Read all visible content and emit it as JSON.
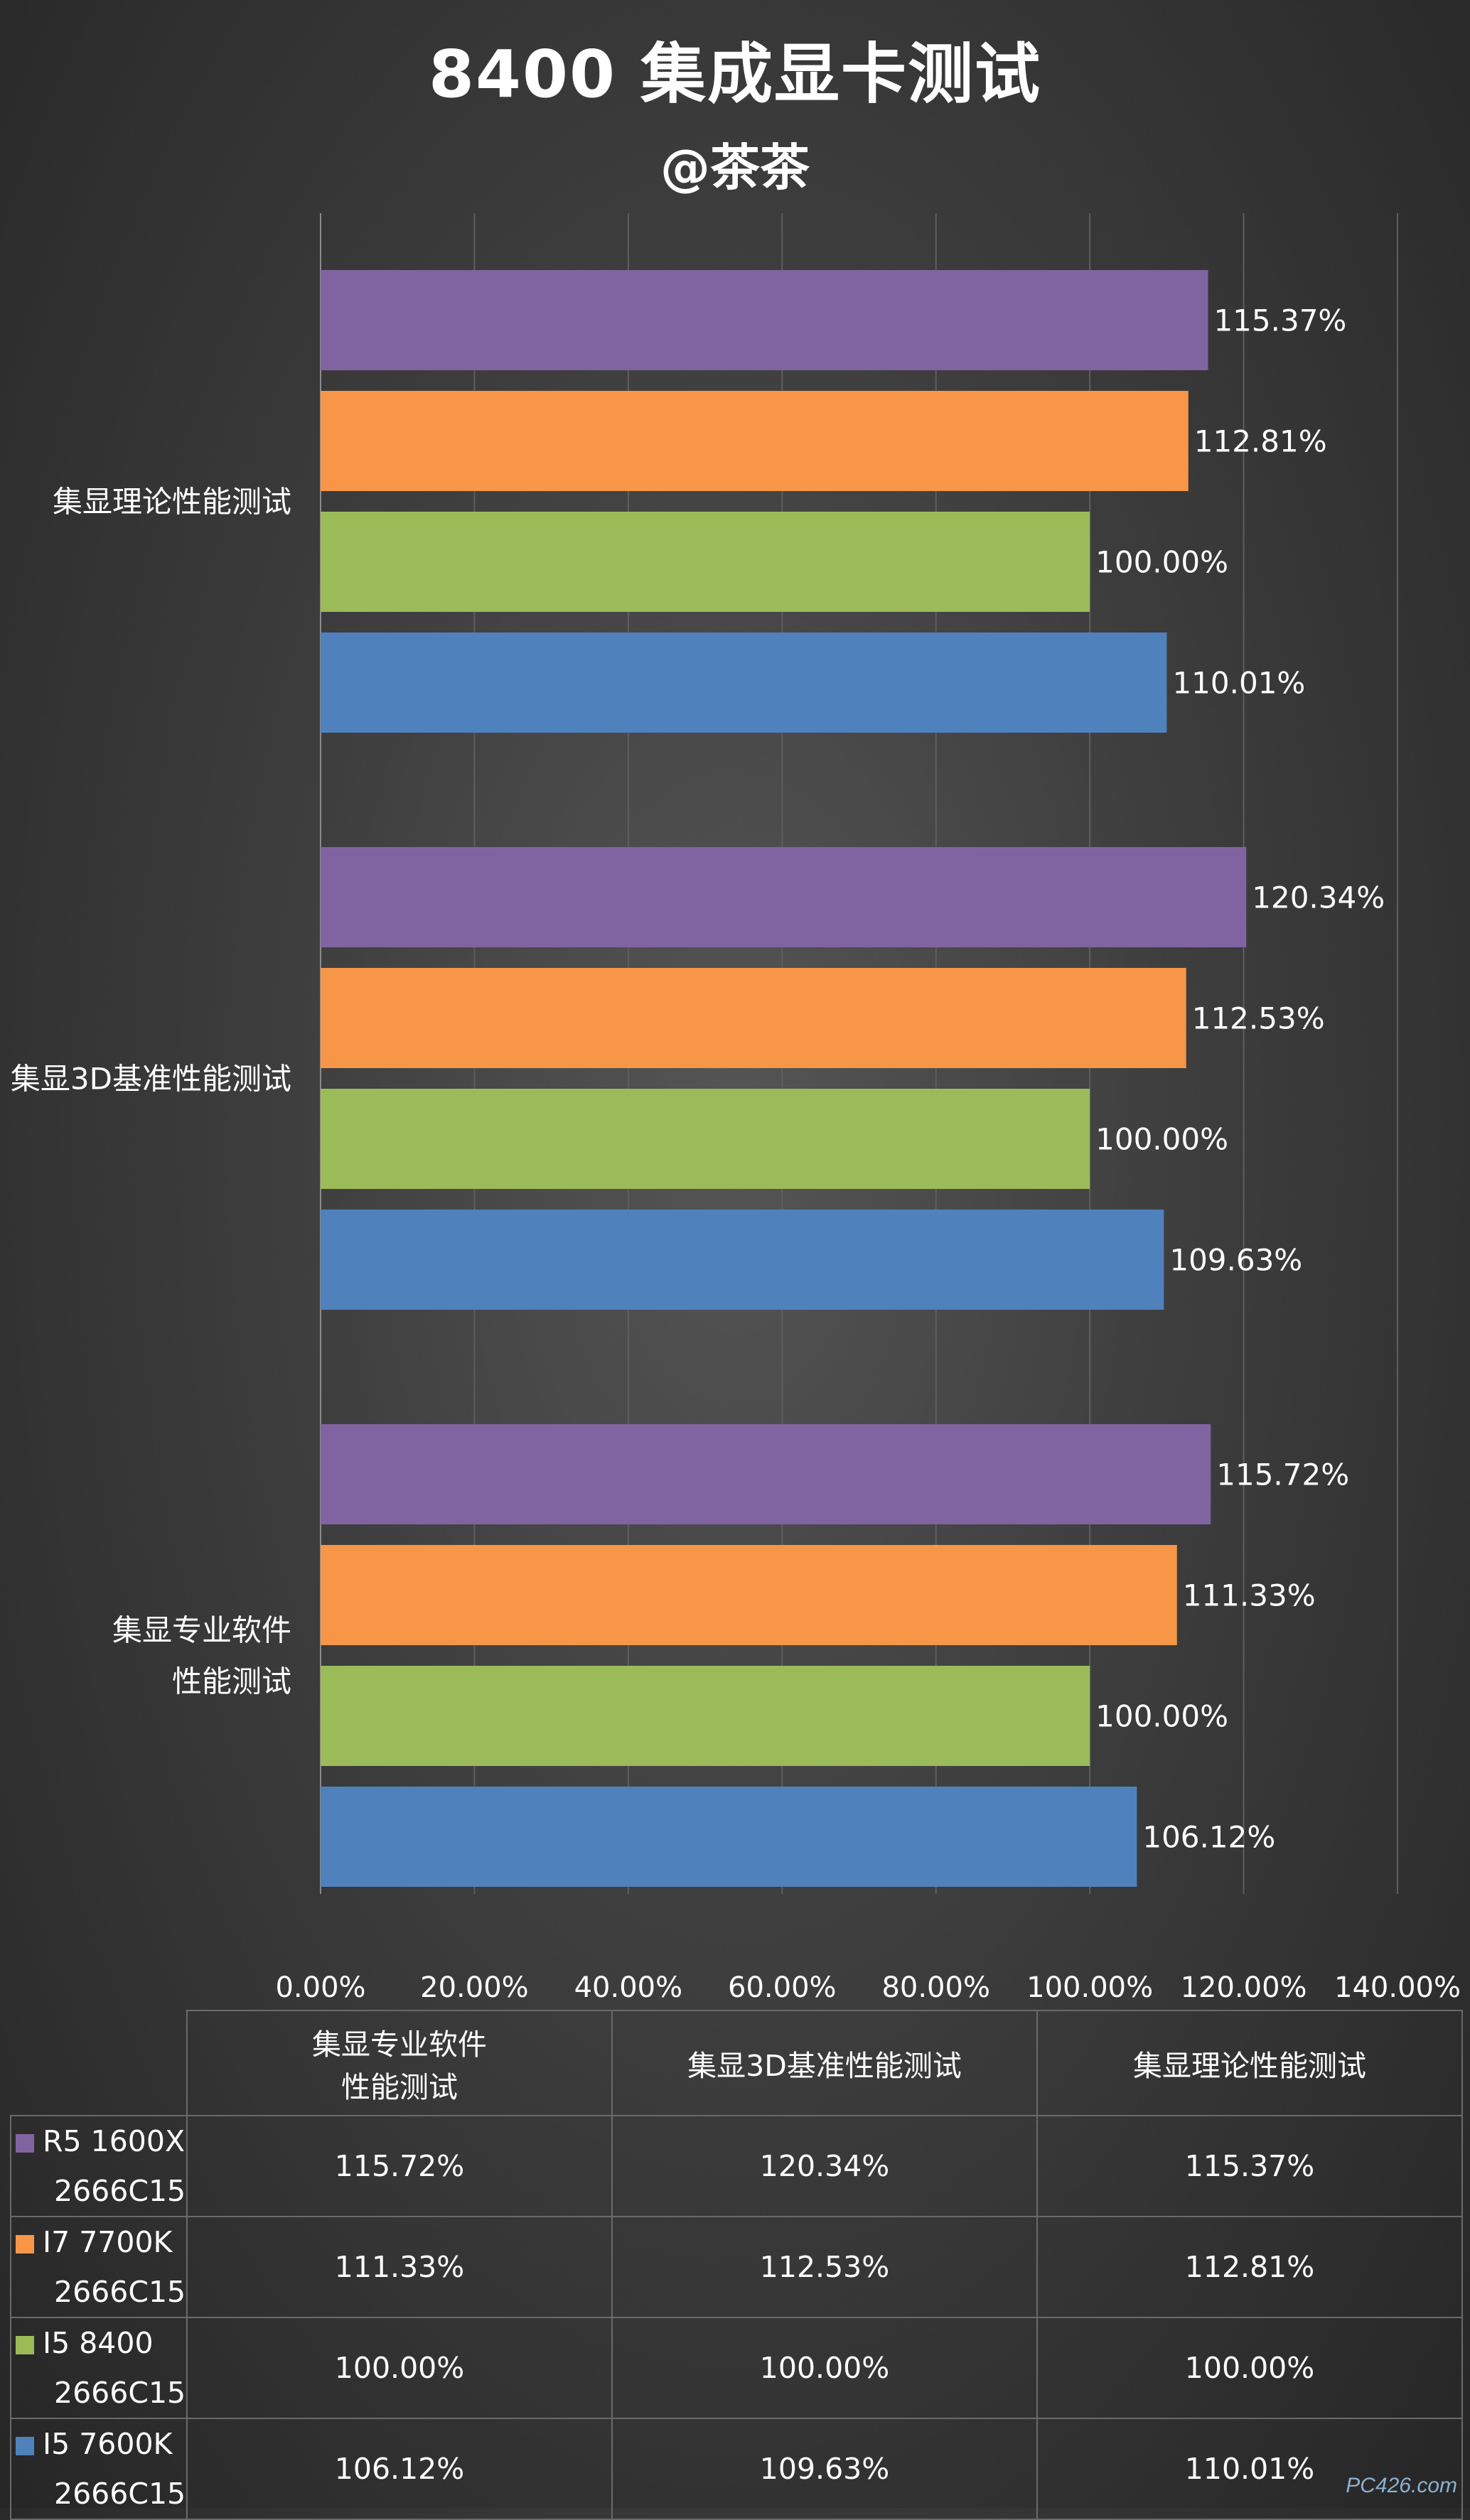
{
  "title": "8400 集成显卡测试",
  "subtitle": "@茶茶",
  "chart_data": {
    "type": "bar",
    "orientation": "horizontal",
    "categories": [
      "集显理论性能测试",
      "集显3D基准性能测试",
      "集显专业软件性能测试"
    ],
    "category_display": [
      [
        "集显理论性能测试"
      ],
      [
        "集显3D基准性能测试"
      ],
      [
        "集显专业软件",
        "性能测试"
      ]
    ],
    "series": [
      {
        "name": "R5 1600X 2666C15",
        "color": "#8064a2",
        "values": [
          115.37,
          120.34,
          115.72
        ],
        "labels": [
          "115.37%",
          "120.34%",
          "115.72%"
        ]
      },
      {
        "name": "I7 7700K 2666C15",
        "color": "#f79646",
        "values": [
          112.81,
          112.53,
          111.33
        ],
        "labels": [
          "112.81%",
          "112.53%",
          "111.33%"
        ]
      },
      {
        "name": "I5 8400 2666C15",
        "color": "#9bbb59",
        "values": [
          100.0,
          100.0,
          100.0
        ],
        "labels": [
          "100.00%",
          "100.00%",
          "100.00%"
        ]
      },
      {
        "name": "I5 7600K 2666C15",
        "color": "#4f81bd",
        "values": [
          110.01,
          109.63,
          106.12
        ],
        "labels": [
          "110.01%",
          "109.63%",
          "106.12%"
        ]
      }
    ],
    "xlim": [
      0,
      140
    ],
    "x_ticks": [
      0,
      20,
      40,
      60,
      80,
      100,
      120,
      140
    ],
    "x_tick_labels": [
      "0.00%",
      "20.00%",
      "40.00%",
      "60.00%",
      "80.00%",
      "100.00%",
      "120.00%",
      "140.00%"
    ],
    "grid": "vertical",
    "legend": "table-below",
    "data_labels": true
  },
  "data_table": {
    "columns": [
      [
        "集显专业软件",
        "性能测试"
      ],
      [
        "集显3D基准性能测试"
      ],
      [
        "集显理论性能测试"
      ]
    ],
    "rows": [
      {
        "series": [
          "R5 1600X",
          "2666C15"
        ],
        "color": "#8064a2",
        "cells": [
          "115.72%",
          "120.34%",
          "115.37%"
        ]
      },
      {
        "series": [
          "I7 7700K",
          "2666C15"
        ],
        "color": "#f79646",
        "cells": [
          "111.33%",
          "112.53%",
          "112.81%"
        ]
      },
      {
        "series": [
          "I5 8400",
          "2666C15"
        ],
        "color": "#9bbb59",
        "cells": [
          "100.00%",
          "100.00%",
          "100.00%"
        ]
      },
      {
        "series": [
          "I5 7600K",
          "2666C15"
        ],
        "color": "#4f81bd",
        "cells": [
          "106.12%",
          "109.63%",
          "110.01%"
        ]
      }
    ]
  },
  "watermark": "PC426.com"
}
